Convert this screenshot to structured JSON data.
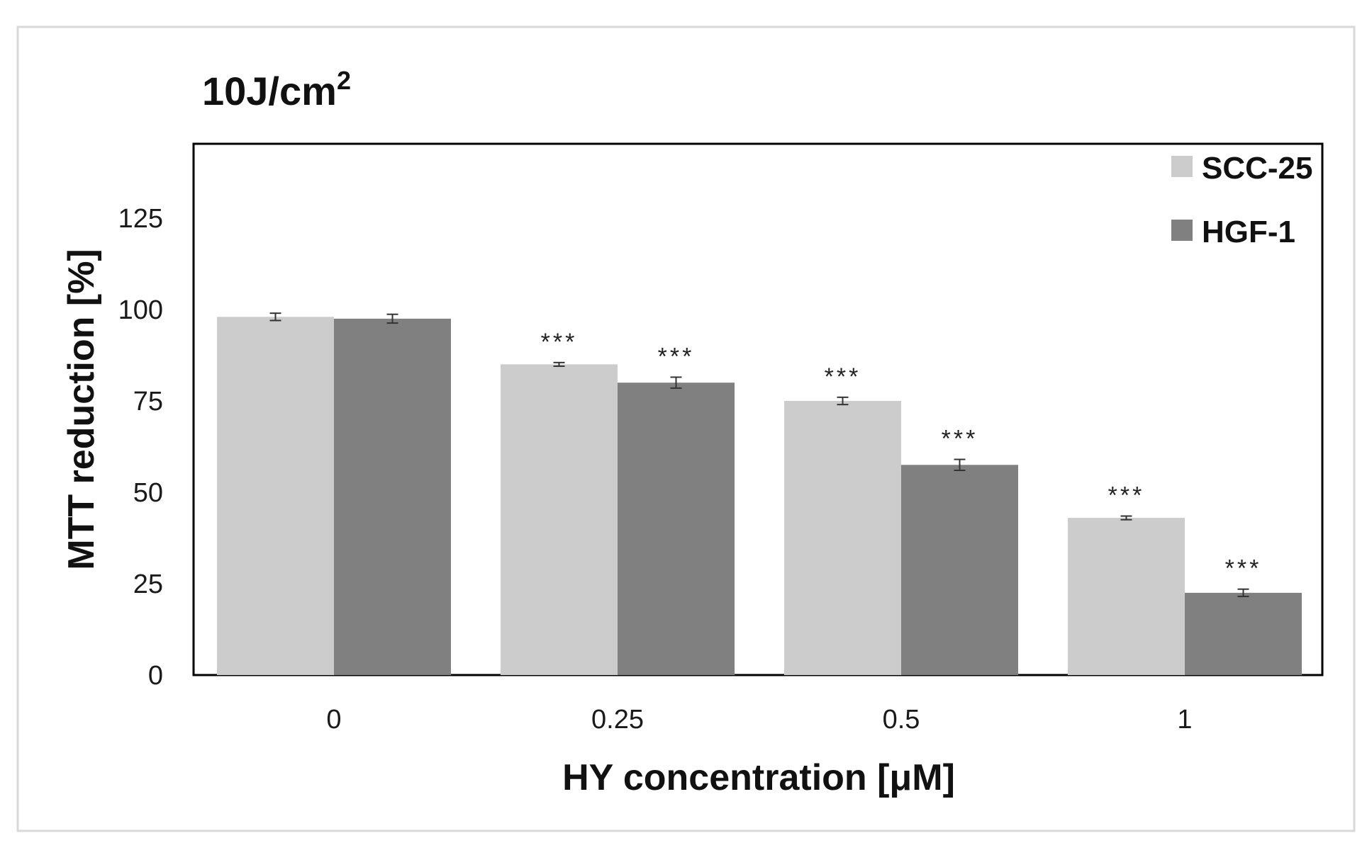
{
  "chart_data": {
    "type": "bar",
    "title_main": "10J/cm",
    "title_sup": "2",
    "xlabel": "HY concentration [μM]",
    "ylabel": "MTT reduction [%]",
    "categories": [
      "0",
      "0.25",
      "0.5",
      "1"
    ],
    "ylim": [
      0,
      145
    ],
    "yticks": [
      "0",
      "25",
      "50",
      "75",
      "100",
      "125"
    ],
    "ytick_values": [
      0,
      25,
      50,
      75,
      100,
      125
    ],
    "grid": false,
    "legend_position": "top-right",
    "series": [
      {
        "name": "SCC-25",
        "color": "#cccccc",
        "values": [
          98,
          85,
          75,
          43
        ],
        "errors": [
          1,
          0.5,
          1,
          0.5
        ],
        "significance": [
          "",
          "***",
          "***",
          "***"
        ]
      },
      {
        "name": "HGF-1",
        "color": "#808080",
        "values": [
          97.5,
          80,
          57.5,
          22.5
        ],
        "errors": [
          1.2,
          1.5,
          1.5,
          1
        ],
        "significance": [
          "",
          "***",
          "***",
          "***"
        ]
      }
    ]
  }
}
